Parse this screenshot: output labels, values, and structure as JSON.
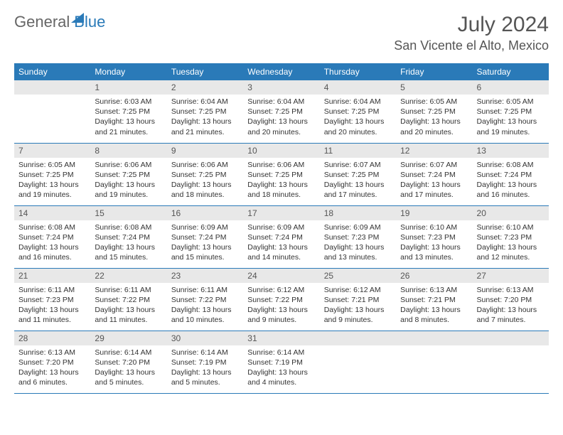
{
  "branding": {
    "word1": "General",
    "word2": "Blue"
  },
  "header": {
    "month": "July 2024",
    "location": "San Vicente el Alto, Mexico"
  },
  "weekdays": [
    "Sunday",
    "Monday",
    "Tuesday",
    "Wednesday",
    "Thursday",
    "Friday",
    "Saturday"
  ],
  "colors": {
    "accent": "#2a7ab8",
    "headerBg": "#2a7ab8",
    "headerText": "#ffffff",
    "dayNumBg": "#e8e8e8",
    "borderColor": "#2a7ab8",
    "textColor": "#333333"
  },
  "calendar": {
    "startDayOfWeek": 1,
    "daysInMonth": 31,
    "days": [
      {
        "n": 1,
        "sunrise": "6:03 AM",
        "sunset": "7:25 PM",
        "daylight": "13 hours and 21 minutes."
      },
      {
        "n": 2,
        "sunrise": "6:04 AM",
        "sunset": "7:25 PM",
        "daylight": "13 hours and 21 minutes."
      },
      {
        "n": 3,
        "sunrise": "6:04 AM",
        "sunset": "7:25 PM",
        "daylight": "13 hours and 20 minutes."
      },
      {
        "n": 4,
        "sunrise": "6:04 AM",
        "sunset": "7:25 PM",
        "daylight": "13 hours and 20 minutes."
      },
      {
        "n": 5,
        "sunrise": "6:05 AM",
        "sunset": "7:25 PM",
        "daylight": "13 hours and 20 minutes."
      },
      {
        "n": 6,
        "sunrise": "6:05 AM",
        "sunset": "7:25 PM",
        "daylight": "13 hours and 19 minutes."
      },
      {
        "n": 7,
        "sunrise": "6:05 AM",
        "sunset": "7:25 PM",
        "daylight": "13 hours and 19 minutes."
      },
      {
        "n": 8,
        "sunrise": "6:06 AM",
        "sunset": "7:25 PM",
        "daylight": "13 hours and 19 minutes."
      },
      {
        "n": 9,
        "sunrise": "6:06 AM",
        "sunset": "7:25 PM",
        "daylight": "13 hours and 18 minutes."
      },
      {
        "n": 10,
        "sunrise": "6:06 AM",
        "sunset": "7:25 PM",
        "daylight": "13 hours and 18 minutes."
      },
      {
        "n": 11,
        "sunrise": "6:07 AM",
        "sunset": "7:25 PM",
        "daylight": "13 hours and 17 minutes."
      },
      {
        "n": 12,
        "sunrise": "6:07 AM",
        "sunset": "7:24 PM",
        "daylight": "13 hours and 17 minutes."
      },
      {
        "n": 13,
        "sunrise": "6:08 AM",
        "sunset": "7:24 PM",
        "daylight": "13 hours and 16 minutes."
      },
      {
        "n": 14,
        "sunrise": "6:08 AM",
        "sunset": "7:24 PM",
        "daylight": "13 hours and 16 minutes."
      },
      {
        "n": 15,
        "sunrise": "6:08 AM",
        "sunset": "7:24 PM",
        "daylight": "13 hours and 15 minutes."
      },
      {
        "n": 16,
        "sunrise": "6:09 AM",
        "sunset": "7:24 PM",
        "daylight": "13 hours and 15 minutes."
      },
      {
        "n": 17,
        "sunrise": "6:09 AM",
        "sunset": "7:24 PM",
        "daylight": "13 hours and 14 minutes."
      },
      {
        "n": 18,
        "sunrise": "6:09 AM",
        "sunset": "7:23 PM",
        "daylight": "13 hours and 13 minutes."
      },
      {
        "n": 19,
        "sunrise": "6:10 AM",
        "sunset": "7:23 PM",
        "daylight": "13 hours and 13 minutes."
      },
      {
        "n": 20,
        "sunrise": "6:10 AM",
        "sunset": "7:23 PM",
        "daylight": "13 hours and 12 minutes."
      },
      {
        "n": 21,
        "sunrise": "6:11 AM",
        "sunset": "7:23 PM",
        "daylight": "13 hours and 11 minutes."
      },
      {
        "n": 22,
        "sunrise": "6:11 AM",
        "sunset": "7:22 PM",
        "daylight": "13 hours and 11 minutes."
      },
      {
        "n": 23,
        "sunrise": "6:11 AM",
        "sunset": "7:22 PM",
        "daylight": "13 hours and 10 minutes."
      },
      {
        "n": 24,
        "sunrise": "6:12 AM",
        "sunset": "7:22 PM",
        "daylight": "13 hours and 9 minutes."
      },
      {
        "n": 25,
        "sunrise": "6:12 AM",
        "sunset": "7:21 PM",
        "daylight": "13 hours and 9 minutes."
      },
      {
        "n": 26,
        "sunrise": "6:13 AM",
        "sunset": "7:21 PM",
        "daylight": "13 hours and 8 minutes."
      },
      {
        "n": 27,
        "sunrise": "6:13 AM",
        "sunset": "7:20 PM",
        "daylight": "13 hours and 7 minutes."
      },
      {
        "n": 28,
        "sunrise": "6:13 AM",
        "sunset": "7:20 PM",
        "daylight": "13 hours and 6 minutes."
      },
      {
        "n": 29,
        "sunrise": "6:14 AM",
        "sunset": "7:20 PM",
        "daylight": "13 hours and 5 minutes."
      },
      {
        "n": 30,
        "sunrise": "6:14 AM",
        "sunset": "7:19 PM",
        "daylight": "13 hours and 5 minutes."
      },
      {
        "n": 31,
        "sunrise": "6:14 AM",
        "sunset": "7:19 PM",
        "daylight": "13 hours and 4 minutes."
      }
    ]
  },
  "labels": {
    "sunrise": "Sunrise:",
    "sunset": "Sunset:",
    "daylight": "Daylight:"
  }
}
